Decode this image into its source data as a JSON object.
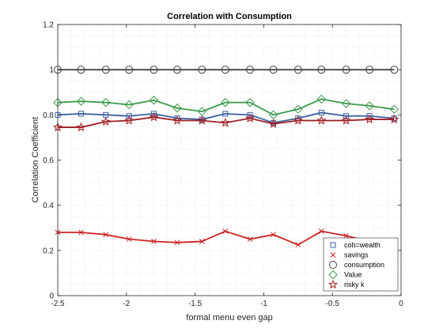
{
  "chart_data": {
    "type": "line",
    "title": "Correlation with Consumption",
    "xlabel": "formal menu even gap",
    "ylabel": "Correlation Coefficient",
    "xlim": [
      -2.5,
      0
    ],
    "ylim": [
      0,
      1.2
    ],
    "xticks": [
      -2.5,
      -2,
      -1.5,
      -1,
      -0.5,
      0
    ],
    "xtick_labels": [
      "-2.5",
      "-2",
      "-1.5",
      "-1",
      "-0.5",
      "0"
    ],
    "yticks": [
      0,
      0.2,
      0.4,
      0.6,
      0.8,
      1,
      1.2
    ],
    "ytick_labels": [
      "0",
      "0.2",
      "0.4",
      "0.6",
      "0.8",
      "1",
      "1.2"
    ],
    "grid": true,
    "legend_position": "bottom-right",
    "x": [
      -2.5,
      -2.33,
      -2.15,
      -1.98,
      -1.8,
      -1.63,
      -1.45,
      -1.28,
      -1.1,
      -0.93,
      -0.75,
      -0.58,
      -0.4,
      -0.23,
      -0.05
    ],
    "series": [
      {
        "name": "coh=wealth",
        "color": "#3a5fa0",
        "marker": "square",
        "values": [
          0.8,
          0.805,
          0.8,
          0.795,
          0.805,
          0.785,
          0.78,
          0.805,
          0.8,
          0.765,
          0.785,
          0.81,
          0.795,
          0.795,
          0.785
        ]
      },
      {
        "name": "savings",
        "color": "#cc2222",
        "marker": "x",
        "values": [
          0.28,
          0.28,
          0.27,
          0.25,
          0.24,
          0.235,
          0.24,
          0.285,
          0.25,
          0.27,
          0.225,
          0.285,
          0.265,
          0.24,
          0.23
        ]
      },
      {
        "name": "consumption",
        "color": "#444444",
        "marker": "circle",
        "values": [
          1,
          1,
          1,
          1,
          1,
          1,
          1,
          1,
          1,
          1,
          1,
          1,
          1,
          1,
          1
        ]
      },
      {
        "name": "Value",
        "color": "#3a9a4a",
        "marker": "diamond",
        "values": [
          0.855,
          0.86,
          0.855,
          0.845,
          0.865,
          0.83,
          0.815,
          0.855,
          0.855,
          0.8,
          0.825,
          0.87,
          0.85,
          0.84,
          0.825
        ]
      },
      {
        "name": "risky k",
        "color": "#a01c22",
        "marker": "star",
        "values": [
          0.745,
          0.745,
          0.77,
          0.775,
          0.79,
          0.775,
          0.775,
          0.765,
          0.785,
          0.76,
          0.775,
          0.775,
          0.775,
          0.78,
          0.78
        ]
      }
    ]
  }
}
